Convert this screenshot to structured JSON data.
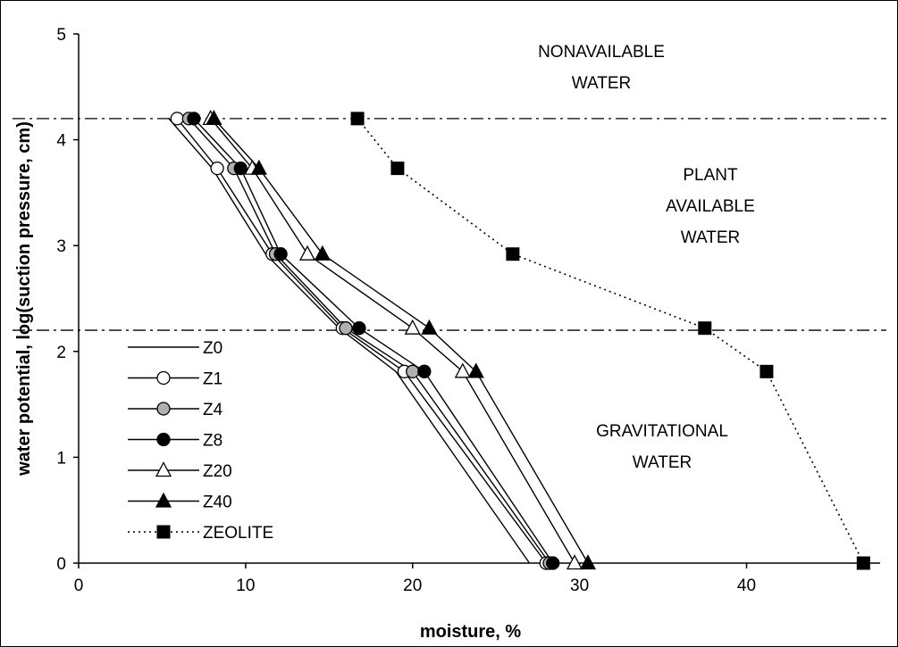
{
  "chart_data": {
    "type": "line",
    "title": "",
    "xlabel": "moisture, %",
    "ylabel": "water potential, log(suction pressure, cm)",
    "xlim": [
      0,
      48
    ],
    "ylim": [
      0,
      5
    ],
    "xticks": [
      "0",
      "10",
      "20",
      "30",
      "40"
    ],
    "yticks": [
      "0",
      "1",
      "2",
      "3",
      "4",
      "5"
    ],
    "grid": false,
    "legend_position": "lower-left",
    "reference_lines": [
      {
        "style": "dash-dot",
        "y": 4.2
      },
      {
        "style": "dash-dot",
        "y": 2.2
      }
    ],
    "zone_labels": [
      {
        "lines": [
          "NONAVAILABLE",
          "WATER"
        ]
      },
      {
        "lines": [
          "PLANT",
          "AVAILABLE",
          "WATER"
        ]
      },
      {
        "lines": [
          "GRAVITATIONAL",
          "WATER"
        ]
      }
    ],
    "series": [
      {
        "name": "Z0",
        "marker": "none",
        "line": "solid",
        "fill": "none",
        "points": [
          [
            5.4,
            4.2
          ],
          [
            8.0,
            3.73
          ],
          [
            11.2,
            2.92
          ],
          [
            15.6,
            2.22
          ],
          [
            19.0,
            1.81
          ],
          [
            27.0,
            0.0
          ]
        ]
      },
      {
        "name": "Z1",
        "marker": "circle",
        "line": "solid",
        "fill": "#ffffff",
        "points": [
          [
            5.9,
            4.2
          ],
          [
            8.3,
            3.73
          ],
          [
            11.6,
            2.92
          ],
          [
            15.8,
            2.22
          ],
          [
            19.5,
            1.81
          ],
          [
            28.0,
            0.0
          ]
        ]
      },
      {
        "name": "Z4",
        "marker": "circle",
        "line": "solid",
        "fill": "#b0b0b0",
        "points": [
          [
            6.6,
            4.2
          ],
          [
            9.3,
            3.73
          ],
          [
            11.8,
            2.92
          ],
          [
            16.0,
            2.22
          ],
          [
            20.0,
            1.81
          ],
          [
            28.2,
            0.0
          ]
        ]
      },
      {
        "name": "Z8",
        "marker": "circle",
        "line": "solid",
        "fill": "#000000",
        "points": [
          [
            6.9,
            4.2
          ],
          [
            9.7,
            3.73
          ],
          [
            12.1,
            2.92
          ],
          [
            16.8,
            2.22
          ],
          [
            20.7,
            1.81
          ],
          [
            28.4,
            0.0
          ]
        ]
      },
      {
        "name": "Z20",
        "marker": "triangle",
        "line": "solid",
        "fill": "#ffffff",
        "points": [
          [
            7.9,
            4.2
          ],
          [
            10.4,
            3.73
          ],
          [
            13.7,
            2.92
          ],
          [
            20.0,
            2.22
          ],
          [
            23.0,
            1.81
          ],
          [
            29.7,
            0.0
          ]
        ]
      },
      {
        "name": "Z40",
        "marker": "triangle",
        "line": "solid",
        "fill": "#000000",
        "points": [
          [
            8.1,
            4.2
          ],
          [
            10.8,
            3.73
          ],
          [
            14.6,
            2.92
          ],
          [
            21.0,
            2.22
          ],
          [
            23.8,
            1.81
          ],
          [
            30.5,
            0.0
          ]
        ]
      },
      {
        "name": "ZEOLITE",
        "marker": "square",
        "line": "dotted",
        "fill": "#000000",
        "points": [
          [
            16.7,
            4.2
          ],
          [
            19.1,
            3.73
          ],
          [
            26.0,
            2.92
          ],
          [
            37.5,
            2.22
          ],
          [
            41.2,
            1.81
          ],
          [
            47.0,
            0.0
          ]
        ]
      }
    ]
  }
}
